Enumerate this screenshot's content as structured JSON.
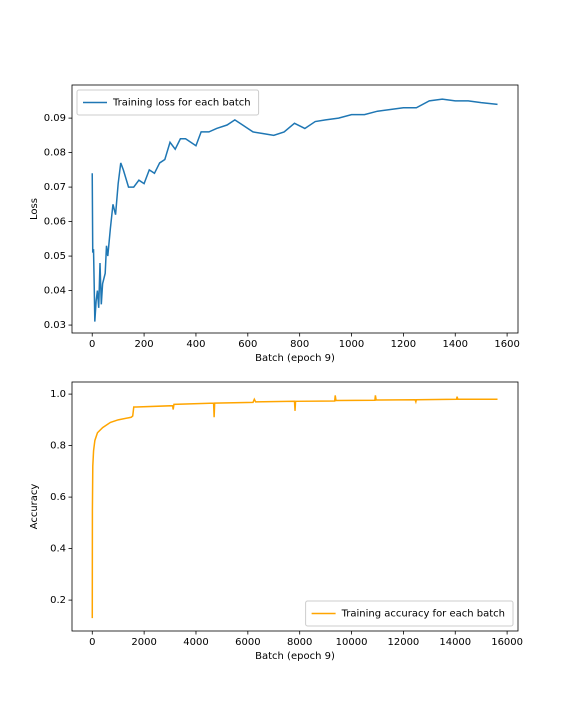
{
  "chart_data": [
    {
      "type": "line",
      "xlabel": "Batch (epoch 9)",
      "ylabel": "Loss",
      "xlim": [
        -78,
        1642
      ],
      "ylim": [
        0.0277,
        0.0996
      ],
      "xticks": [
        0,
        200,
        400,
        600,
        800,
        1000,
        1200,
        1400,
        1600
      ],
      "yticks": [
        0.03,
        0.04,
        0.05,
        0.06,
        0.07,
        0.08,
        0.09
      ],
      "legend": "upper left",
      "grid": false,
      "x": [
        0,
        2,
        5,
        8,
        10,
        15,
        20,
        25,
        30,
        35,
        40,
        50,
        55,
        60,
        70,
        80,
        90,
        100,
        110,
        120,
        140,
        160,
        180,
        200,
        220,
        240,
        260,
        280,
        300,
        320,
        340,
        360,
        380,
        400,
        420,
        450,
        480,
        520,
        550,
        580,
        620,
        660,
        700,
        740,
        780,
        820,
        860,
        900,
        950,
        1000,
        1050,
        1100,
        1150,
        1200,
        1250,
        1300,
        1350,
        1400,
        1450,
        1500,
        1563
      ],
      "series": [
        {
          "name": "Training loss for each batch",
          "color": "#1f77b4",
          "values": [
            0.074,
            0.051,
            0.052,
            0.04,
            0.031,
            0.037,
            0.04,
            0.035,
            0.048,
            0.036,
            0.042,
            0.045,
            0.053,
            0.05,
            0.058,
            0.065,
            0.062,
            0.071,
            0.077,
            0.075,
            0.07,
            0.07,
            0.072,
            0.071,
            0.075,
            0.074,
            0.077,
            0.078,
            0.083,
            0.081,
            0.084,
            0.084,
            0.083,
            0.082,
            0.086,
            0.086,
            0.087,
            0.088,
            0.0895,
            0.088,
            0.086,
            0.0855,
            0.085,
            0.086,
            0.0885,
            0.087,
            0.089,
            0.0895,
            0.09,
            0.091,
            0.091,
            0.092,
            0.0925,
            0.093,
            0.093,
            0.095,
            0.0955,
            0.095,
            0.095,
            0.0945,
            0.094
          ]
        }
      ]
    },
    {
      "type": "line",
      "xlabel": "Batch (epoch 9)",
      "ylabel": "Accuracy",
      "xlim": [
        -782,
        16420
      ],
      "ylim": [
        0.08,
        1.047
      ],
      "xticks": [
        0,
        2000,
        4000,
        6000,
        8000,
        10000,
        12000,
        14000,
        16000
      ],
      "yticks": [
        0.2,
        0.4,
        0.6,
        0.8,
        {
          "value": 1,
          "label": "1.0"
        }
      ],
      "legend": "lower right",
      "grid": false,
      "x": [
        0,
        5,
        20,
        50,
        100,
        200,
        400,
        700,
        1000,
        1500,
        1560,
        1600,
        1700,
        3100,
        3120,
        3150,
        4680,
        4700,
        4720,
        6200,
        6250,
        6300,
        7800,
        7820,
        7840,
        9350,
        9370,
        9400,
        10900,
        10920,
        10950,
        12450,
        12480,
        12500,
        14050,
        14070,
        14100,
        15630
      ],
      "series": [
        {
          "name": "Training accuracy for each batch",
          "color": "#ffa500",
          "values": [
            0.13,
            0.55,
            0.72,
            0.78,
            0.82,
            0.85,
            0.87,
            0.89,
            0.9,
            0.91,
            0.915,
            0.95,
            0.95,
            0.955,
            0.94,
            0.96,
            0.965,
            0.91,
            0.965,
            0.968,
            0.98,
            0.97,
            0.972,
            0.935,
            0.972,
            0.973,
            0.995,
            0.975,
            0.976,
            0.995,
            0.977,
            0.978,
            0.97,
            0.978,
            0.98,
            0.99,
            0.98,
            0.98
          ]
        }
      ]
    }
  ]
}
